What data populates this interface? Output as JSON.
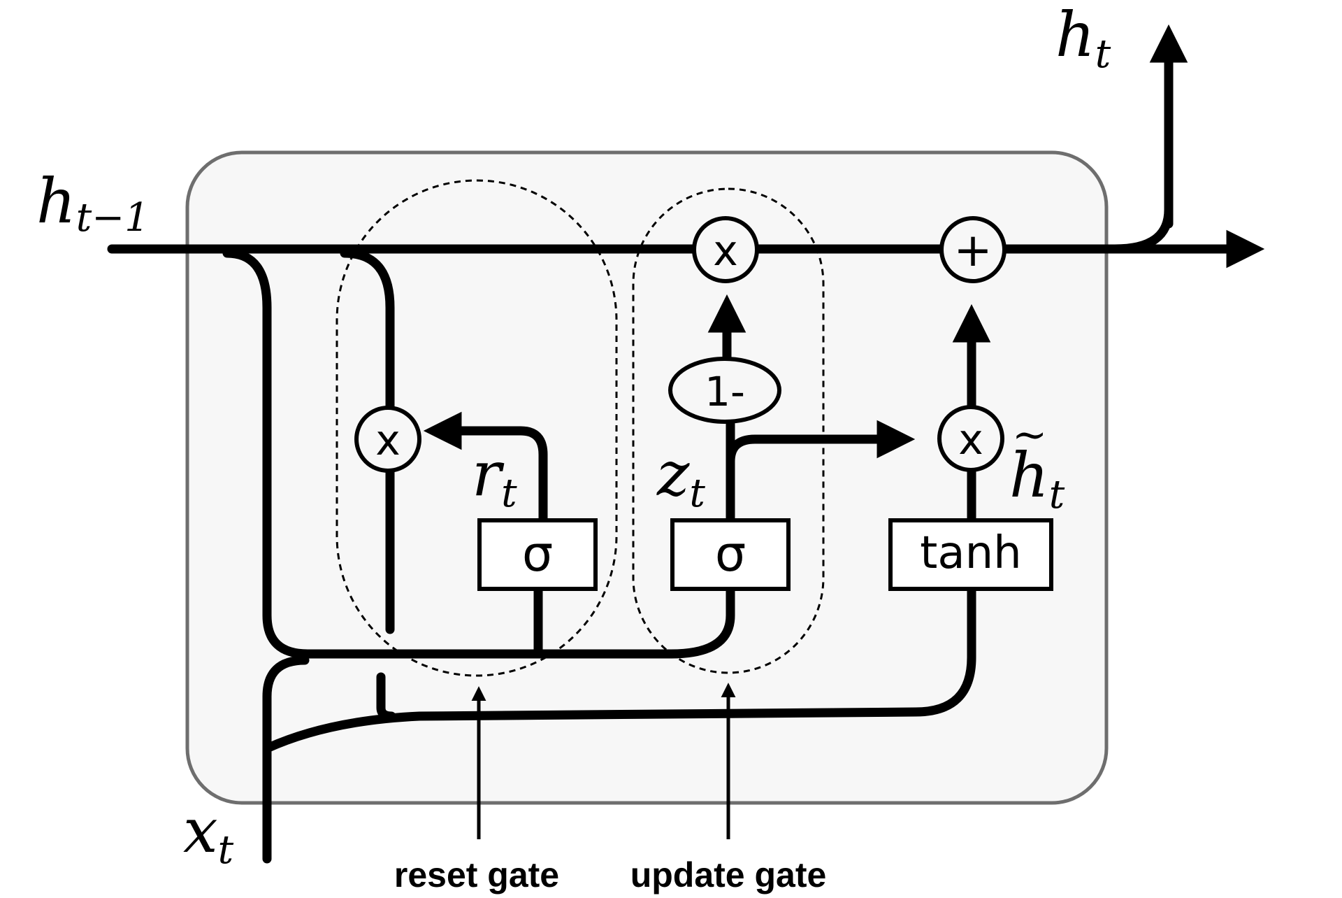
{
  "inputs": {
    "h_prev": {
      "base": "h",
      "sub": "t−1"
    },
    "x": {
      "base": "x",
      "sub": "t"
    }
  },
  "outputs": {
    "h": {
      "base": "h",
      "sub": "t"
    }
  },
  "internal_labels": {
    "r": {
      "base": "r",
      "sub": "t"
    },
    "z": {
      "base": "z",
      "sub": "t"
    },
    "h_tilde": {
      "base": "h",
      "accent": "~",
      "sub": "t"
    }
  },
  "operators": {
    "multiply": "x",
    "add": "+",
    "one_minus": "1-"
  },
  "activations": {
    "reset_sigma": "σ",
    "update_sigma": "σ",
    "candidate": "tanh"
  },
  "gate_labels": {
    "reset": "reset gate",
    "update": "update gate"
  },
  "colors": {
    "line": "#000000",
    "cell_fill": "#f7f7f7",
    "cell_border": "#6e6e6e"
  }
}
